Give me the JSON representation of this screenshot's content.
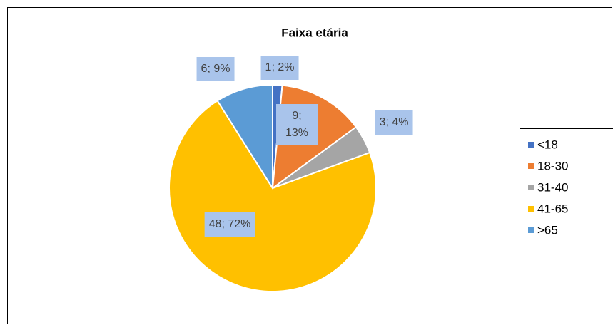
{
  "chart_data": {
    "type": "pie",
    "title": "Faixa etária",
    "categories": [
      "<18",
      "18-30",
      "31-40",
      "41-65",
      ">65"
    ],
    "values": [
      1,
      9,
      3,
      48,
      6
    ],
    "value_labels": [
      "1; 2%",
      "9; 13%",
      "3; 4%",
      "48; 72%",
      "6; 9%"
    ],
    "colors": [
      "#4472c4",
      "#ed7d31",
      "#a5a5a5",
      "#ffc000",
      "#5b9bd5"
    ],
    "legend": "right"
  }
}
